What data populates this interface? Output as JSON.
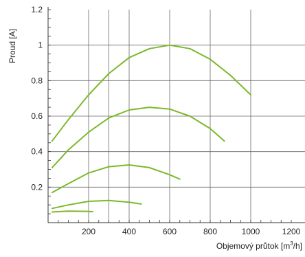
{
  "chart_data": {
    "type": "line",
    "xlabel": "Objemový průtok [m³/h]",
    "ylabel": "Proud [A]",
    "xlim": [
      0,
      1200
    ],
    "ylim": [
      0,
      1.2
    ],
    "x_ticks": [
      200,
      400,
      600,
      800,
      1000,
      1200
    ],
    "y_ticks": [
      0.2,
      0.4,
      0.6,
      0.8,
      1,
      1.2
    ],
    "grid": true,
    "legend": "none",
    "colors": {
      "series": "#7ab929",
      "grid": "#666666",
      "axis": "#333333"
    },
    "series": [
      {
        "x": [
          20,
          100,
          200,
          300,
          400,
          500,
          600,
          700,
          800,
          900,
          1000
        ],
        "y": [
          0.46,
          0.58,
          0.72,
          0.84,
          0.93,
          0.98,
          1.0,
          0.98,
          0.92,
          0.83,
          0.72
        ]
      },
      {
        "x": [
          20,
          100,
          200,
          300,
          400,
          500,
          600,
          700,
          800,
          870
        ],
        "y": [
          0.31,
          0.41,
          0.51,
          0.59,
          0.635,
          0.65,
          0.64,
          0.6,
          0.53,
          0.46
        ]
      },
      {
        "x": [
          20,
          100,
          200,
          300,
          400,
          500,
          600,
          650
        ],
        "y": [
          0.17,
          0.22,
          0.28,
          0.315,
          0.325,
          0.31,
          0.27,
          0.245
        ]
      },
      {
        "x": [
          20,
          100,
          200,
          300,
          400,
          460
        ],
        "y": [
          0.08,
          0.1,
          0.12,
          0.125,
          0.115,
          0.105
        ]
      },
      {
        "x": [
          20,
          100,
          200,
          220
        ],
        "y": [
          0.06,
          0.065,
          0.063,
          0.062
        ]
      }
    ]
  }
}
